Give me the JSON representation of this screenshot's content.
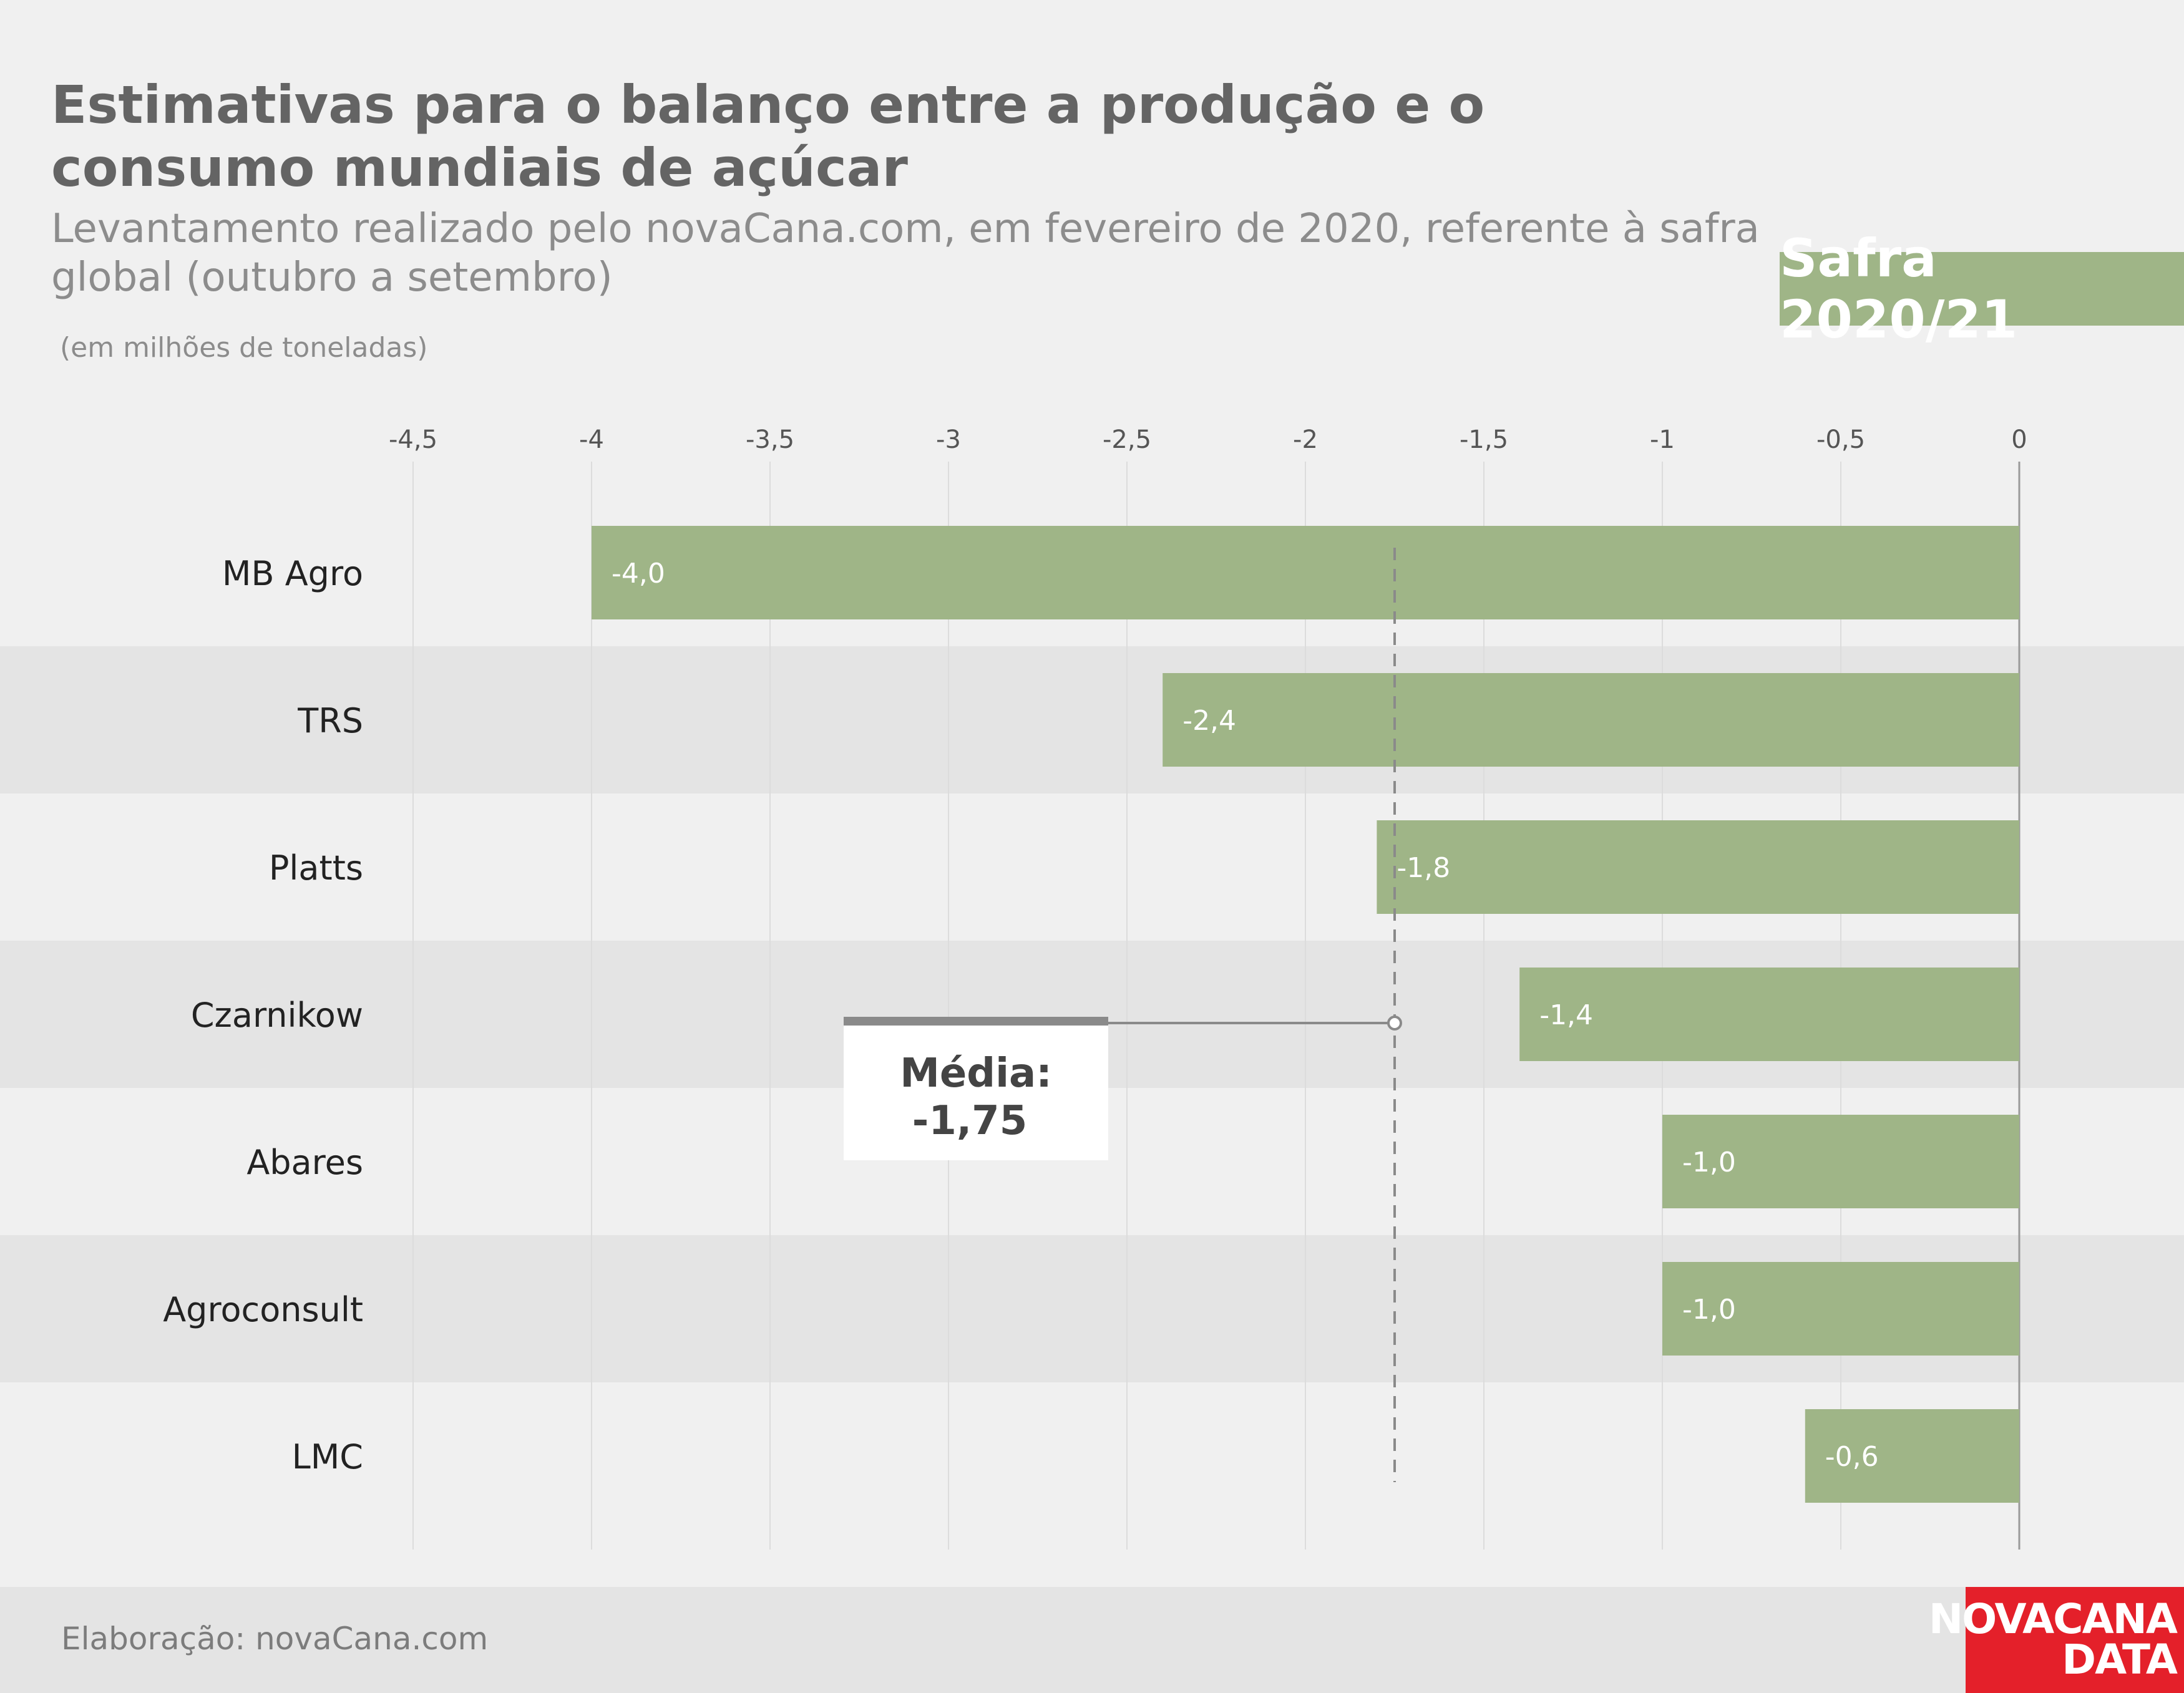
{
  "header": {
    "title": "Estimativas para o balanço entre a produção e o consumo mundiais de açúcar",
    "subtitle": "Levantamento realizado pelo novaCana.com, em fevereiro de 2020, referente à safra global (outubro a setembro)",
    "unit": "(em milhões de toneladas)",
    "badge": "Safra 2020/21"
  },
  "footer": {
    "credit": "Elaboração: novaCana.com",
    "logo_line1": "NOVACANA",
    "logo_line2": "DATA"
  },
  "colors": {
    "bar": "#9fb587",
    "band_alt": "#e4e4e4",
    "background": "#f0f0f0",
    "logo": "#e4202a"
  },
  "chart_data": {
    "type": "bar",
    "orientation": "horizontal",
    "categories": [
      "MB Agro",
      "TRS",
      "Platts",
      "Czarnikow",
      "Abares",
      "Agroconsult",
      "LMC"
    ],
    "values": [
      -4.0,
      -2.4,
      -1.8,
      -1.4,
      -1.0,
      -1.0,
      -0.6
    ],
    "value_labels": [
      "-4,0",
      "-2,4",
      "-1,8",
      "-1,4",
      "-1,0",
      "-1,0",
      "-0,6"
    ],
    "xlim": [
      -4.5,
      0
    ],
    "xticks": [
      -4.5,
      -4,
      -3.5,
      -3,
      -2.5,
      -2,
      -1.5,
      -1,
      -0.5,
      0
    ],
    "xtick_labels": [
      "-4,5",
      "-4",
      "-3,5",
      "-3",
      "-2,5",
      "-2",
      "-1,5",
      "-1",
      "-0,5",
      "0"
    ],
    "axis_position": "top",
    "grid": true,
    "mean": {
      "value": -1.75,
      "label_line1": "Média:",
      "label_line2": "-1,75"
    }
  }
}
